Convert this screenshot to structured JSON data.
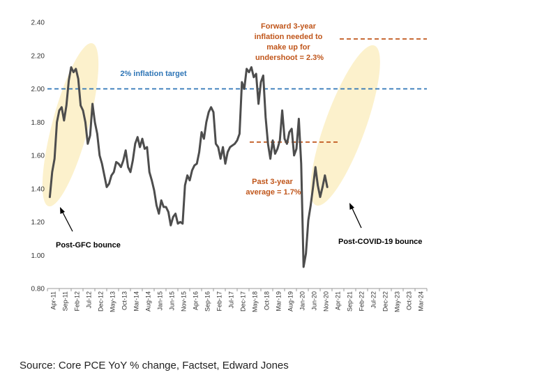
{
  "chart_data": {
    "type": "line",
    "ylim": [
      0.8,
      2.4
    ],
    "y_ticks": [
      "0.80",
      "1.00",
      "1.20",
      "1.40",
      "1.60",
      "1.80",
      "2.00",
      "2.20",
      "2.40"
    ],
    "x_tick_labels": [
      "Apr-11",
      "Sep-11",
      "Feb-12",
      "Jul-12",
      "Dec-12",
      "May-13",
      "Oct-13",
      "Mar-14",
      "Aug-14",
      "Jan-15",
      "Jun-15",
      "Nov-15",
      "Apr-16",
      "Sep-16",
      "Feb-17",
      "Jul-17",
      "Dec-17",
      "May-18",
      "Oct-18",
      "Mar-19",
      "Aug-19",
      "Jan-20",
      "Jun-20",
      "Nov-20",
      "Apr-21",
      "Sep-21",
      "Feb-22",
      "Jul-22",
      "Dec-22",
      "May-23",
      "Oct-23",
      "Mar-24"
    ],
    "series": [
      {
        "name": "Core PCE YoY % change",
        "color": "#4d4d4d",
        "values": [
          1.35,
          1.5,
          1.58,
          1.8,
          1.87,
          1.89,
          1.81,
          1.9,
          2.05,
          2.13,
          2.1,
          2.12,
          2.06,
          1.9,
          1.87,
          1.8,
          1.67,
          1.72,
          1.91,
          1.8,
          1.73,
          1.6,
          1.55,
          1.48,
          1.41,
          1.43,
          1.48,
          1.5,
          1.56,
          1.55,
          1.53,
          1.57,
          1.63,
          1.53,
          1.5,
          1.57,
          1.67,
          1.71,
          1.65,
          1.7,
          1.64,
          1.65,
          1.5,
          1.45,
          1.39,
          1.3,
          1.25,
          1.33,
          1.29,
          1.29,
          1.26,
          1.18,
          1.23,
          1.25,
          1.19,
          1.2,
          1.19,
          1.42,
          1.48,
          1.45,
          1.51,
          1.54,
          1.55,
          1.62,
          1.74,
          1.7,
          1.8,
          1.86,
          1.89,
          1.86,
          1.67,
          1.65,
          1.58,
          1.65,
          1.55,
          1.62,
          1.65,
          1.66,
          1.67,
          1.69,
          1.73,
          2.04,
          2.0,
          2.12,
          2.1,
          2.13,
          2.07,
          2.09,
          1.91,
          2.04,
          2.08,
          1.83,
          1.67,
          1.58,
          1.69,
          1.61,
          1.64,
          1.69,
          1.87,
          1.7,
          1.67,
          1.74,
          1.76,
          1.6,
          1.64,
          1.82,
          1.55,
          0.93,
          1.01,
          1.21,
          1.3,
          1.41,
          1.53,
          1.42,
          1.35,
          1.41,
          1.48,
          1.41
        ]
      }
    ],
    "reference_lines": [
      {
        "label": "2% inflation target",
        "value": 2.0,
        "color": "#2e75b6",
        "style": "dashed"
      },
      {
        "label": "Past 3-year average = 1.7%",
        "value": 1.68,
        "color": "#c0561b",
        "style": "dashed"
      },
      {
        "label": "Forward 3-year inflation needed to make up for undershoot = 2.3%",
        "value": 2.3,
        "color": "#c0561b",
        "style": "dashed"
      }
    ],
    "annotations": {
      "target_label": "2% inflation target",
      "forward_label": [
        "Forward 3-year",
        "inflation needed to",
        "make up for",
        "undershoot = 2.3%"
      ],
      "past_label": [
        "Past 3-year",
        "average = 1.7%"
      ],
      "gfc_label": "Post-GFC bounce",
      "covid_label": "Post-COVID-19 bounce"
    },
    "source": "Source: Core PCE YoY % change, Factset, Edward Jones"
  },
  "colors": {
    "line": "#4d4d4d",
    "target": "#2e75b6",
    "orange": "#c0561b",
    "highlight": "#fbeec3",
    "axis": "#999999"
  }
}
